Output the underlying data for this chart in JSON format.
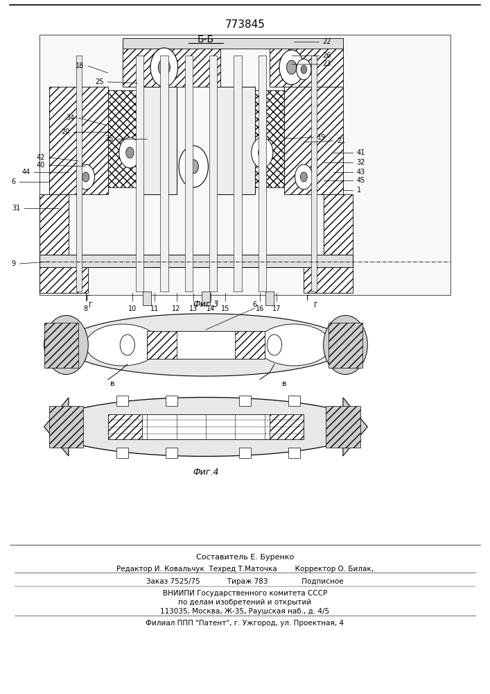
{
  "patent_number": "773845",
  "section_label_top": "Б-Б",
  "fig3_label": "Фиг.3",
  "fig4_label": "Фиг.4",
  "composer": "Составитель Е. Буренко",
  "editor_line": "Редактор И. Ковальчук  Техред Т.Маточка        Корректор О. Билак,",
  "order_line": "Заказ 7525/75            Тираж 783               Подписное",
  "vniipи_line": "ВНИИПИ Государственного комитета СССР",
  "affairs_line": "по делам изобретений и открытий",
  "address_line": "113035, Москва, Ж-35, Раушская наб., д. 4/5",
  "filial_line": "Филиал ППП \"Патент\", г. Ужгород, ул. Проектная, 4",
  "bg_color": "#ffffff",
  "line_color": "#000000",
  "font_size_patent": 11,
  "font_size_labels": 10,
  "font_size_footer": 8
}
